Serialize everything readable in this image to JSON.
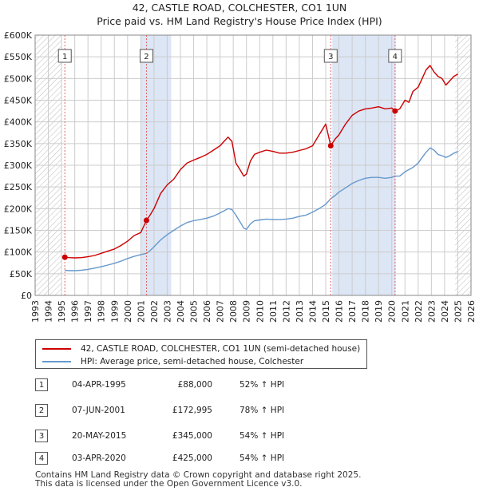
{
  "header": {
    "title": "42, CASTLE ROAD, COLCHESTER, CO1 1UN",
    "subtitle": "Price paid vs. HM Land Registry's House Price Index (HPI)"
  },
  "colors": {
    "price_line": "#cc0000",
    "hpi_line": "#6699cc",
    "shade": "#dde6f5",
    "grid": "#cccccc",
    "marker_line": "#e06666"
  },
  "chart_data": {
    "type": "line",
    "title": "Price paid vs. HM Land Registry's House Price Index (HPI)",
    "xlabel": "",
    "ylabel": "",
    "xlim": [
      1993,
      2026
    ],
    "ylim": [
      0,
      600000
    ],
    "x_ticks": [
      "1993",
      "1994",
      "1995",
      "1996",
      "1997",
      "1998",
      "1999",
      "2000",
      "2001",
      "2002",
      "2003",
      "2004",
      "2005",
      "2006",
      "2007",
      "2008",
      "2009",
      "2010",
      "2011",
      "2012",
      "2013",
      "2014",
      "2015",
      "2016",
      "2017",
      "2018",
      "2019",
      "2020",
      "2021",
      "2022",
      "2023",
      "2024",
      "2025",
      "2026"
    ],
    "y_ticks": [
      0,
      50000,
      100000,
      150000,
      200000,
      250000,
      300000,
      350000,
      400000,
      450000,
      500000,
      550000,
      600000
    ],
    "y_tick_labels": [
      "£0",
      "£50K",
      "£100K",
      "£150K",
      "£200K",
      "£250K",
      "£300K",
      "£350K",
      "£400K",
      "£450K",
      "£500K",
      "£550K",
      "£600K"
    ],
    "grid": true,
    "hatched_regions": [
      [
        1993,
        1995.0
      ],
      [
        2024.8,
        2026
      ]
    ],
    "shaded_spans": [
      [
        2001.0,
        2003.3
      ],
      [
        2015.5,
        2020.3
      ]
    ],
    "series": [
      {
        "name": "42, CASTLE ROAD, COLCHESTER, CO1 1UN (semi-detached house)",
        "x": [
          1995.25,
          1995.6,
          1996.0,
          1996.5,
          1997.0,
          1997.5,
          1998.0,
          1998.5,
          1999.0,
          1999.5,
          2000.0,
          2000.5,
          2001.0,
          2001.43,
          2001.7,
          2002.0,
          2002.5,
          2003.0,
          2003.5,
          2004.0,
          2004.5,
          2005.0,
          2005.5,
          2006.0,
          2006.5,
          2007.0,
          2007.3,
          2007.6,
          2007.9,
          2008.2,
          2008.5,
          2008.8,
          2009.0,
          2009.3,
          2009.6,
          2010.0,
          2010.5,
          2011.0,
          2011.5,
          2012.0,
          2012.5,
          2013.0,
          2013.5,
          2014.0,
          2014.5,
          2015.0,
          2015.38,
          2015.7,
          2016.0,
          2016.5,
          2017.0,
          2017.5,
          2018.0,
          2018.5,
          2019.0,
          2019.5,
          2020.0,
          2020.25,
          2020.6,
          2021.0,
          2021.3,
          2021.6,
          2022.0,
          2022.3,
          2022.6,
          2022.9,
          2023.2,
          2023.5,
          2023.8,
          2024.1,
          2024.4,
          2024.7,
          2025.0
        ],
        "values": [
          88000,
          87000,
          86500,
          87000,
          89000,
          92000,
          97000,
          102000,
          107000,
          115000,
          125000,
          138000,
          145000,
          172995,
          185000,
          200000,
          235000,
          255000,
          268000,
          290000,
          305000,
          312000,
          318000,
          325000,
          335000,
          345000,
          355000,
          365000,
          355000,
          305000,
          290000,
          275000,
          280000,
          310000,
          325000,
          330000,
          335000,
          332000,
          328000,
          328000,
          330000,
          334000,
          338000,
          345000,
          370000,
          395000,
          345000,
          360000,
          370000,
          395000,
          415000,
          425000,
          430000,
          432000,
          435000,
          430000,
          432000,
          425000,
          430000,
          450000,
          445000,
          470000,
          480000,
          500000,
          520000,
          530000,
          515000,
          505000,
          500000,
          485000,
          495000,
          505000,
          510000
        ]
      },
      {
        "name": "HPI: Average price, semi-detached house, Colchester",
        "x": [
          1995.25,
          1995.6,
          1996.0,
          1996.5,
          1997.0,
          1997.5,
          1998.0,
          1998.5,
          1999.0,
          1999.5,
          2000.0,
          2000.5,
          2001.0,
          2001.43,
          2001.7,
          2002.0,
          2002.5,
          2003.0,
          2003.5,
          2004.0,
          2004.5,
          2005.0,
          2005.5,
          2006.0,
          2006.5,
          2007.0,
          2007.3,
          2007.6,
          2007.9,
          2008.2,
          2008.5,
          2008.8,
          2009.0,
          2009.3,
          2009.6,
          2010.0,
          2010.5,
          2011.0,
          2011.5,
          2012.0,
          2012.5,
          2013.0,
          2013.5,
          2014.0,
          2014.5,
          2015.0,
          2015.38,
          2015.7,
          2016.0,
          2016.5,
          2017.0,
          2017.5,
          2018.0,
          2018.5,
          2019.0,
          2019.5,
          2020.0,
          2020.25,
          2020.6,
          2021.0,
          2021.3,
          2021.6,
          2022.0,
          2022.3,
          2022.6,
          2022.9,
          2023.2,
          2023.5,
          2023.8,
          2024.1,
          2024.4,
          2024.7,
          2025.0
        ],
        "values": [
          58000,
          57000,
          57000,
          58000,
          60000,
          63000,
          66000,
          70000,
          74000,
          79000,
          85000,
          90000,
          94000,
          97000,
          103000,
          112000,
          128000,
          140000,
          150000,
          160000,
          168000,
          172000,
          175000,
          178000,
          183000,
          190000,
          195000,
          200000,
          198000,
          185000,
          170000,
          155000,
          152000,
          165000,
          172000,
          174000,
          176000,
          175000,
          175000,
          176000,
          178000,
          182000,
          185000,
          192000,
          200000,
          210000,
          223000,
          230000,
          238000,
          248000,
          258000,
          265000,
          270000,
          272000,
          272000,
          270000,
          272000,
          275000,
          275000,
          285000,
          290000,
          295000,
          305000,
          318000,
          330000,
          340000,
          335000,
          325000,
          322000,
          318000,
          322000,
          328000,
          332000
        ]
      }
    ],
    "markers": [
      {
        "label": "1",
        "x": 1995.25,
        "value": 88000
      },
      {
        "label": "2",
        "x": 2001.43,
        "value": 172995
      },
      {
        "label": "3",
        "x": 2015.38,
        "value": 345000
      },
      {
        "label": "4",
        "x": 2020.25,
        "value": 425000
      }
    ]
  },
  "legend": {
    "price_label": "42, CASTLE ROAD, COLCHESTER, CO1 1UN (semi-detached house)",
    "hpi_label": "HPI: Average price, semi-detached house, Colchester"
  },
  "sales": [
    {
      "num": "1",
      "date": "04-APR-1995",
      "price": "£88,000",
      "hpi": "52% ↑ HPI"
    },
    {
      "num": "2",
      "date": "07-JUN-2001",
      "price": "£172,995",
      "hpi": "78% ↑ HPI"
    },
    {
      "num": "3",
      "date": "20-MAY-2015",
      "price": "£345,000",
      "hpi": "54% ↑ HPI"
    },
    {
      "num": "4",
      "date": "03-APR-2020",
      "price": "£425,000",
      "hpi": "54% ↑ HPI"
    }
  ],
  "footer": {
    "line1": "Contains HM Land Registry data © Crown copyright and database right 2025.",
    "line2": "This data is licensed under the Open Government Licence v3.0."
  }
}
